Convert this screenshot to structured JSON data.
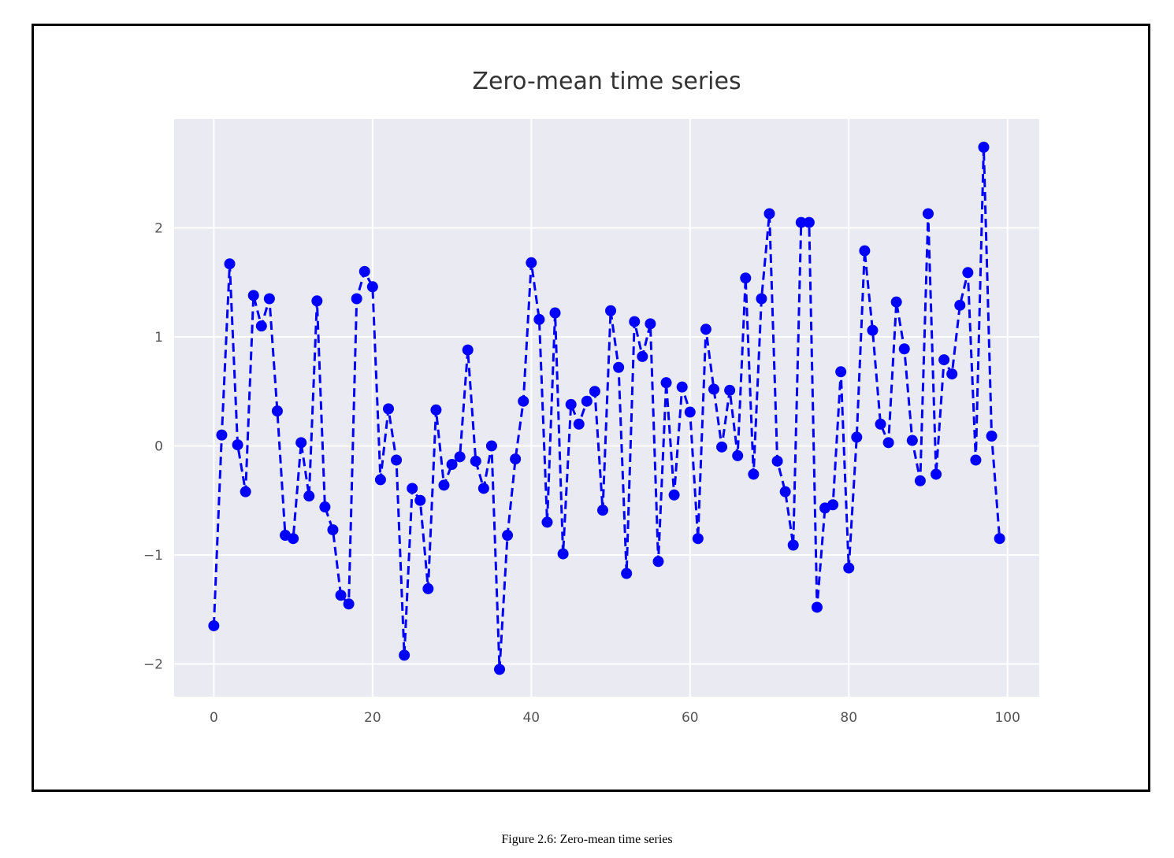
{
  "caption": "Figure 2.6: Zero-mean time series",
  "colors": {
    "line": "#0000ff",
    "plot_bg": "#eaeaf2",
    "grid": "#ffffff",
    "tick_text": "#555555",
    "title_text": "#333333"
  },
  "chart_data": {
    "type": "line",
    "title": "Zero-mean time series",
    "xlabel": "",
    "ylabel": "",
    "xlim": [
      -5,
      104
    ],
    "ylim": [
      -2.3,
      3.0
    ],
    "xticks": [
      0,
      20,
      40,
      60,
      80,
      100
    ],
    "yticks": [
      2,
      1,
      0,
      -1,
      -2
    ],
    "xtick_labels": [
      "0",
      "20",
      "40",
      "60",
      "80",
      "100"
    ],
    "ytick_labels": [
      "2",
      "1",
      "0",
      "−1",
      "−2"
    ],
    "grid": true,
    "line_style": "dashed",
    "marker": "circle",
    "series": [
      {
        "values": [
          -1.65,
          0.1,
          1.67,
          0.01,
          -0.42,
          1.38,
          1.1,
          1.35,
          0.32,
          -0.82,
          -0.85,
          0.03,
          -0.46,
          1.33,
          -0.56,
          -0.77,
          -1.37,
          -1.45,
          1.35,
          1.6,
          1.46,
          -0.31,
          0.34,
          -0.13,
          -1.92,
          -0.39,
          -0.5,
          -1.31,
          0.33,
          -0.36,
          -0.17,
          -0.1,
          0.88,
          -0.14,
          -0.39,
          0.0,
          -2.05,
          -0.82,
          -0.12,
          0.41,
          1.68,
          1.16,
          -0.7,
          1.22,
          -0.99,
          0.38,
          0.2,
          0.41,
          0.5,
          -0.59,
          1.24,
          0.72,
          -1.17,
          1.14,
          0.82,
          1.12,
          -1.06,
          0.58,
          -0.45,
          0.54,
          0.31,
          -0.85,
          1.07,
          0.52,
          -0.01,
          0.51,
          -0.09,
          1.54,
          -0.26,
          1.35,
          2.13,
          -0.14,
          -0.42,
          -0.91,
          2.05,
          2.05,
          -1.48,
          -0.57,
          -0.54,
          0.68,
          -1.12,
          0.08,
          1.79,
          1.06,
          0.2,
          0.03,
          1.32,
          0.89,
          0.05,
          -0.32,
          2.13,
          -0.26,
          0.79,
          0.66,
          1.29,
          1.59,
          -0.13,
          2.74,
          0.09,
          -0.85
        ]
      }
    ]
  }
}
